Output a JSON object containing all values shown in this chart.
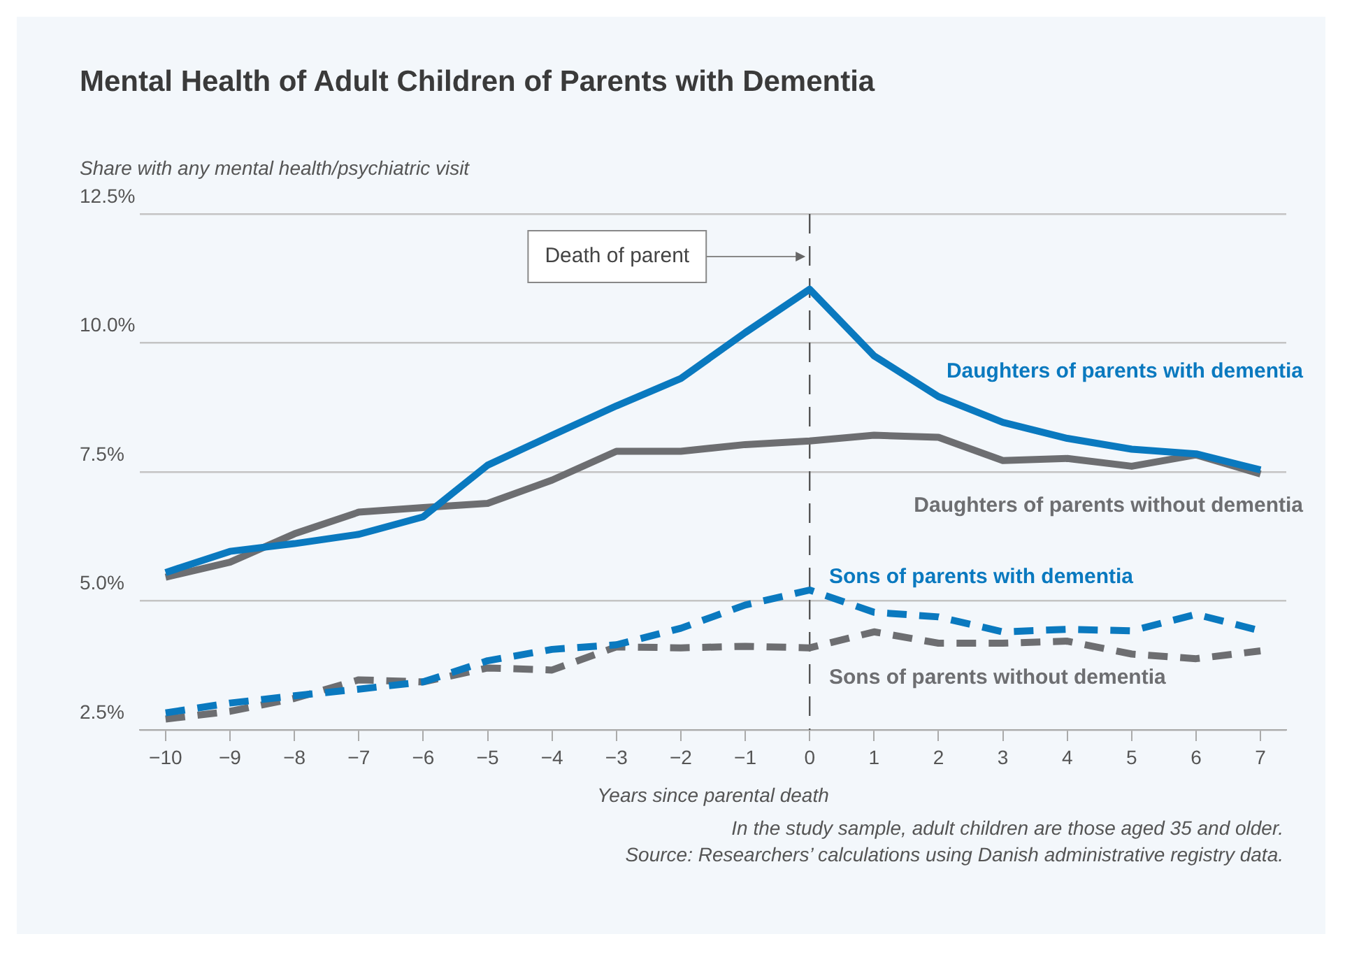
{
  "chart_data": {
    "type": "line",
    "title": "Mental Health of Adult Children of Parents with Dementia",
    "ylabel": "Share with any mental health/psychiatric visit",
    "xlabel": "Years since parental death",
    "x": [
      -10,
      -9,
      -8,
      -7,
      -6,
      -5,
      -4,
      -3,
      -2,
      -1,
      0,
      1,
      2,
      3,
      4,
      5,
      6,
      7
    ],
    "xlim": [
      -10.4,
      7.4
    ],
    "xticks": [
      {
        "value": -10,
        "label": "−10"
      },
      {
        "value": -9,
        "label": "−9"
      },
      {
        "value": -8,
        "label": "−8"
      },
      {
        "value": -7,
        "label": "−7"
      },
      {
        "value": -6,
        "label": "−6"
      },
      {
        "value": -5,
        "label": "−5"
      },
      {
        "value": -4,
        "label": "−4"
      },
      {
        "value": -3,
        "label": "−3"
      },
      {
        "value": -2,
        "label": "−2"
      },
      {
        "value": -1,
        "label": "−1"
      },
      0,
      1,
      2,
      3,
      4,
      5,
      6,
      7
    ],
    "ylim": [
      2.5,
      12.5
    ],
    "yticks": [
      {
        "value": 2.5,
        "label": "2.5%"
      },
      {
        "value": 5,
        "label": "5.0%"
      },
      {
        "value": 7.5,
        "label": "7.5%"
      },
      {
        "value": 10,
        "label": "10.0%"
      },
      {
        "value": 12.5,
        "label": "12.5%"
      }
    ],
    "grid": "y",
    "series": [
      {
        "name": "Daughters of parents with dementia",
        "color": "#0a79bf",
        "line_style": "solid",
        "values": [
          5.55,
          5.96,
          6.11,
          6.29,
          6.63,
          7.63,
          8.21,
          8.78,
          9.31,
          10.2,
          11.04,
          9.75,
          8.96,
          8.46,
          8.15,
          7.94,
          7.85,
          7.54
        ]
      },
      {
        "name": "Daughters of parents without dementia",
        "color": "#6d6e71",
        "line_style": "solid",
        "values": [
          5.46,
          5.75,
          6.3,
          6.72,
          6.81,
          6.89,
          7.34,
          7.9,
          7.9,
          8.03,
          8.1,
          8.21,
          8.17,
          7.72,
          7.76,
          7.61,
          7.83,
          7.46
        ]
      },
      {
        "name": "Sons of parents with dementia",
        "color": "#0a79bf",
        "line_style": "dashed",
        "values": [
          2.83,
          3.02,
          3.16,
          3.29,
          3.43,
          3.84,
          4.06,
          4.15,
          4.47,
          4.92,
          5.21,
          4.78,
          4.69,
          4.4,
          4.45,
          4.42,
          4.74,
          4.42
        ]
      },
      {
        "name": "Sons of parents without dementia",
        "color": "#6d6e71",
        "line_style": "dashed",
        "values": [
          2.71,
          2.86,
          3.11,
          3.47,
          3.43,
          3.7,
          3.66,
          4.11,
          4.09,
          4.12,
          4.09,
          4.4,
          4.18,
          4.18,
          4.22,
          3.97,
          3.88,
          4.03
        ]
      }
    ],
    "ref_lines": [
      {
        "axis": "x",
        "value": 0,
        "label": "Death of parent",
        "color": "#555555",
        "line_style": "dashed"
      }
    ],
    "annotations": [
      "In the study sample, adult children are those aged 35 and older.",
      "Source: Researchers’ calculations using Danish administrative registry data."
    ]
  }
}
